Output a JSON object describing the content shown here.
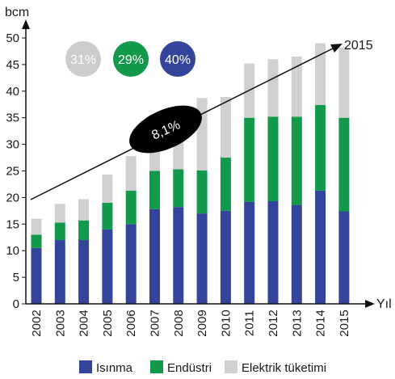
{
  "chart_data": {
    "type": "bar",
    "stacked": true,
    "ylabel": "bcm",
    "xlabel": "Yıl",
    "ylim": [
      0,
      50
    ],
    "yticks": [
      0,
      5,
      10,
      15,
      20,
      25,
      30,
      35,
      40,
      45,
      50
    ],
    "categories": [
      "2002",
      "2003",
      "2004",
      "2005",
      "2006",
      "2007",
      "2008",
      "2009",
      "2010",
      "2011",
      "2012",
      "2013",
      "2014",
      "2015"
    ],
    "series": [
      {
        "name": "Isınma",
        "color": "#34449a",
        "values": [
          10.5,
          12.0,
          12.0,
          14.0,
          15.0,
          17.8,
          18.2,
          17.0,
          17.5,
          19.2,
          19.3,
          18.6,
          21.3,
          17.4
        ]
      },
      {
        "name": "Endüstri",
        "color": "#12994c",
        "values": [
          2.5,
          3.3,
          3.7,
          5.0,
          6.3,
          7.2,
          7.1,
          8.1,
          10.0,
          15.8,
          15.9,
          16.6,
          16.1,
          17.6
        ]
      },
      {
        "name": "Elektrik tüketimi",
        "color": "#d0d0d0",
        "values": [
          3.0,
          3.5,
          4.0,
          5.3,
          6.5,
          7.5,
          8.2,
          13.6,
          11.4,
          10.2,
          10.8,
          11.3,
          11.6,
          13.2
        ]
      }
    ],
    "badges": [
      {
        "label": "31%",
        "color": "#cccccc"
      },
      {
        "label": "29%",
        "color": "#12994c"
      },
      {
        "label": "40%",
        "color": "#34449a"
      }
    ],
    "trend": {
      "label": "8,1%",
      "end_label": "2015"
    },
    "grid": false,
    "legend": "bottom"
  }
}
